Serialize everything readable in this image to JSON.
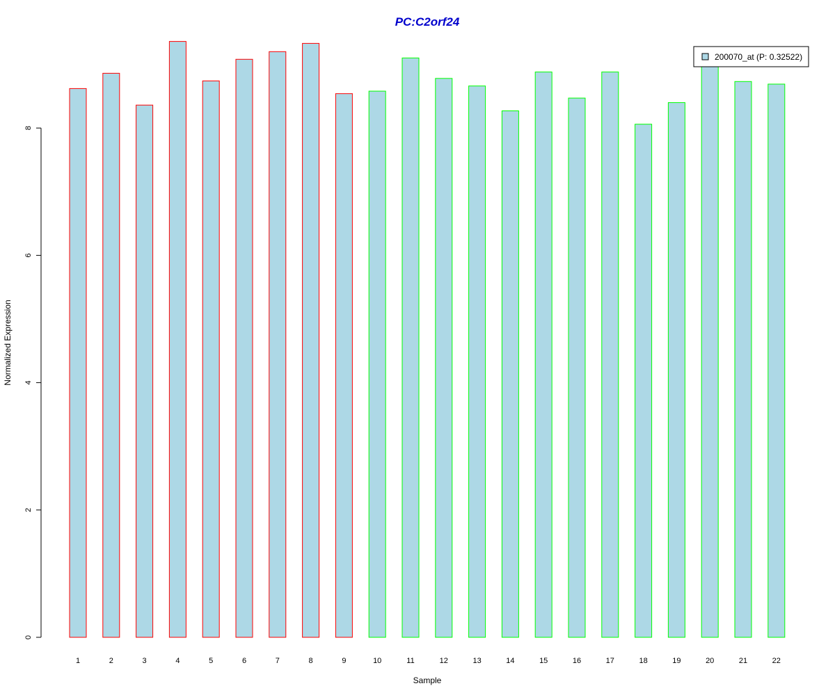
{
  "chart_data": {
    "type": "bar",
    "title": "PC:C2orf24",
    "title_color": "#0000cc",
    "xlabel": "Sample",
    "ylabel": "Normalized Expression",
    "categories": [
      "1",
      "2",
      "3",
      "4",
      "5",
      "6",
      "7",
      "8",
      "9",
      "10",
      "11",
      "12",
      "13",
      "14",
      "15",
      "16",
      "17",
      "18",
      "19",
      "20",
      "21",
      "22"
    ],
    "series": [
      {
        "name": "200070_at (P: 0.32522)",
        "values": [
          8.62,
          8.86,
          8.36,
          9.36,
          8.74,
          9.08,
          9.2,
          9.33,
          8.54,
          8.58,
          9.1,
          8.78,
          8.66,
          8.27,
          8.88,
          8.47,
          8.88,
          8.06,
          8.4,
          9.02,
          8.73,
          8.69
        ],
        "fill_color": "#add8e6"
      }
    ],
    "bar_border_colors": [
      "#ff0000",
      "#ff0000",
      "#ff0000",
      "#ff0000",
      "#ff0000",
      "#ff0000",
      "#ff0000",
      "#ff0000",
      "#ff0000",
      "#00ff00",
      "#00ff00",
      "#00ff00",
      "#00ff00",
      "#00ff00",
      "#00ff00",
      "#00ff00",
      "#00ff00",
      "#00ff00",
      "#00ff00",
      "#00ff00",
      "#00ff00",
      "#00ff00"
    ],
    "yticks": [
      0,
      2,
      4,
      6,
      8
    ],
    "ylim": [
      0,
      9.5
    ],
    "grid": false,
    "legend_position": "top-right"
  }
}
